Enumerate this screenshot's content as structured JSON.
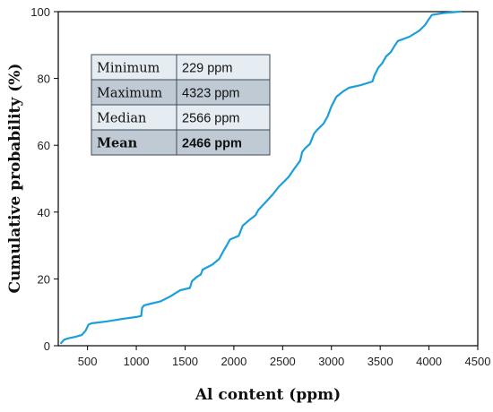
{
  "chart_data": {
    "type": "line",
    "xlabel": "Al content (ppm)",
    "ylabel": "Cumulative probability (%)",
    "xlim": [
      200,
      4500
    ],
    "ylim": [
      0,
      100
    ],
    "xticks": [
      500,
      1000,
      1500,
      2000,
      2500,
      3000,
      3500,
      4000,
      4500
    ],
    "yticks": [
      0,
      20,
      40,
      60,
      80,
      100
    ],
    "grid": false,
    "series": [
      {
        "color": "#1a9fdb",
        "points": [
          [
            229,
            0.8
          ],
          [
            260,
            1.8
          ],
          [
            300,
            2.2
          ],
          [
            380,
            2.7
          ],
          [
            440,
            3.2
          ],
          [
            480,
            4.5
          ],
          [
            510,
            6.3
          ],
          [
            540,
            6.7
          ],
          [
            700,
            7.3
          ],
          [
            850,
            8.0
          ],
          [
            1000,
            8.6
          ],
          [
            1050,
            8.9
          ],
          [
            1060,
            11.4
          ],
          [
            1080,
            12.1
          ],
          [
            1150,
            12.6
          ],
          [
            1250,
            13.3
          ],
          [
            1350,
            14.8
          ],
          [
            1450,
            16.6
          ],
          [
            1550,
            17.3
          ],
          [
            1570,
            19.3
          ],
          [
            1620,
            20.6
          ],
          [
            1660,
            21.3
          ],
          [
            1680,
            22.8
          ],
          [
            1780,
            24.3
          ],
          [
            1850,
            26.0
          ],
          [
            1900,
            28.7
          ],
          [
            1930,
            30.2
          ],
          [
            1960,
            31.8
          ],
          [
            2050,
            32.9
          ],
          [
            2090,
            35.9
          ],
          [
            2170,
            37.9
          ],
          [
            2220,
            39.0
          ],
          [
            2250,
            40.6
          ],
          [
            2330,
            43.1
          ],
          [
            2400,
            45.3
          ],
          [
            2460,
            47.6
          ],
          [
            2520,
            49.3
          ],
          [
            2560,
            50.5
          ],
          [
            2620,
            53.0
          ],
          [
            2680,
            55.4
          ],
          [
            2700,
            58.0
          ],
          [
            2730,
            59.1
          ],
          [
            2780,
            60.4
          ],
          [
            2820,
            63.4
          ],
          [
            2850,
            64.5
          ],
          [
            2920,
            66.5
          ],
          [
            2960,
            68.6
          ],
          [
            3000,
            71.6
          ],
          [
            3050,
            74.5
          ],
          [
            3120,
            76.1
          ],
          [
            3180,
            77.2
          ],
          [
            3300,
            78.0
          ],
          [
            3420,
            79.1
          ],
          [
            3440,
            80.8
          ],
          [
            3480,
            83.2
          ],
          [
            3520,
            84.5
          ],
          [
            3560,
            86.6
          ],
          [
            3610,
            87.9
          ],
          [
            3640,
            89.4
          ],
          [
            3680,
            91.2
          ],
          [
            3800,
            92.5
          ],
          [
            3900,
            94.3
          ],
          [
            3960,
            96.0
          ],
          [
            4000,
            97.8
          ],
          [
            4030,
            99.0
          ],
          [
            4150,
            99.6
          ],
          [
            4323,
            100.0
          ]
        ]
      }
    ],
    "table": {
      "rows": [
        {
          "label": "Minimum",
          "value": "229 ppm"
        },
        {
          "label": "Maximum",
          "value": "4323 ppm"
        },
        {
          "label": "Median",
          "value": "2566 ppm"
        },
        {
          "label": "Mean",
          "value": "2466 ppm",
          "bold": true
        }
      ],
      "colors": {
        "light": "#e6edf2",
        "dark": "#bfcad4",
        "border": "#3d4a57"
      }
    }
  }
}
